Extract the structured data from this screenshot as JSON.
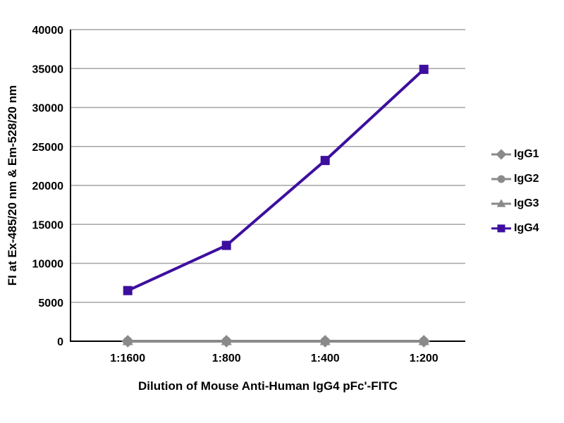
{
  "chart_data": {
    "type": "line",
    "title": "",
    "xlabel": "Dilution of Mouse Anti-Human IgG4 pFc'-FITC",
    "ylabel": "FI at Ex-485/20 nm & Em-528/20 nm",
    "categories": [
      "1:1600",
      "1:800",
      "1:400",
      "1:200"
    ],
    "series": [
      {
        "name": "IgG1",
        "marker": "diamond",
        "color": "#8a8a8a",
        "values": [
          0,
          0,
          0,
          0
        ]
      },
      {
        "name": "IgG2",
        "marker": "circle",
        "color": "#8a8a8a",
        "values": [
          0,
          0,
          0,
          0
        ]
      },
      {
        "name": "IgG3",
        "marker": "triangle",
        "color": "#8a8a8a",
        "values": [
          0,
          0,
          0,
          0
        ]
      },
      {
        "name": "IgG4",
        "marker": "square",
        "color": "#3d0f9e",
        "values": [
          6500,
          12300,
          23200,
          34900
        ]
      }
    ],
    "ylim": [
      0,
      40000
    ],
    "ytick_step": 5000,
    "grid": true,
    "grid_color": "#a4a4a4",
    "axis_color": "#000000",
    "legend_position": "right"
  }
}
